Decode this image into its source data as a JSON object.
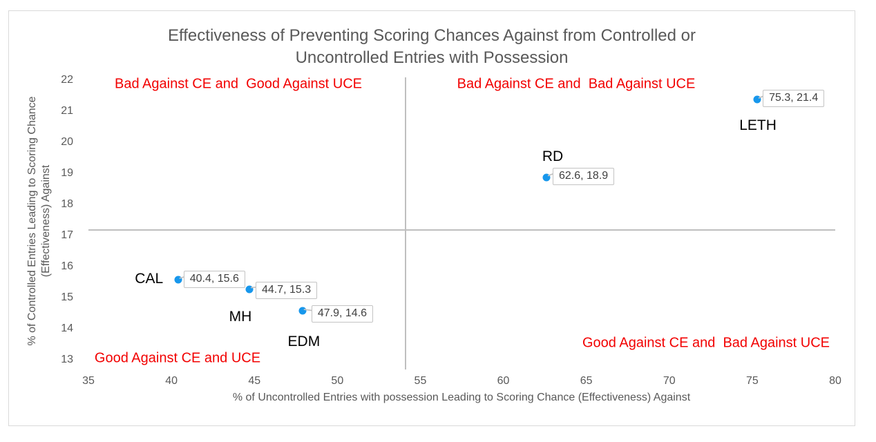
{
  "header": {
    "title_lines": [
      "Effectiveness of Preventing Scoring Chances Against from Controlled or",
      "Uncontrolled Entries with Possession"
    ]
  },
  "chart_data": {
    "type": "scatter",
    "title": "Effectiveness of Preventing Scoring Chances Against from Controlled or Uncontrolled Entries with Possession",
    "xlabel": "% of Uncontrolled Entries with possession Leading to Scoring Chance (Effectiveness) Against",
    "ylabel": "% of Controlled Entries Leading to Scoring Chance (Effectiveness) Against",
    "ylabel_lines": [
      "% of Controlled Entries Leading to Scoring Chance",
      "(Effectiveness) Against"
    ],
    "xlim": [
      35,
      80
    ],
    "ylim": [
      13,
      22
    ],
    "xticks": [
      35,
      40,
      45,
      50,
      55,
      60,
      65,
      70,
      75,
      80
    ],
    "yticks": [
      13,
      14,
      15,
      16,
      17,
      18,
      19,
      20,
      21,
      22
    ],
    "grid": false,
    "legend": "none",
    "reference_lines": {
      "vertical_x": 54.1,
      "horizontal_y": 17.2
    },
    "points": [
      {
        "team": "CAL",
        "x": 40.4,
        "y": 15.6,
        "value_label": "40.4, 15.6",
        "box_offset": [
          8,
          -13
        ],
        "team_offset": [
          -42,
          -1
        ]
      },
      {
        "team": "MH",
        "x": 44.7,
        "y": 15.3,
        "value_label": "44.7, 15.3",
        "box_offset": [
          9,
          -11
        ],
        "team_offset": [
          -13,
          40
        ]
      },
      {
        "team": "EDM",
        "x": 47.9,
        "y": 14.6,
        "value_label": "47.9, 14.6",
        "box_offset": [
          13,
          -8
        ],
        "team_offset": [
          2,
          45
        ]
      },
      {
        "team": "RD",
        "x": 62.6,
        "y": 18.9,
        "value_label": "62.6, 18.9",
        "box_offset": [
          9,
          -14
        ],
        "team_offset": [
          9,
          -30
        ]
      },
      {
        "team": "LETH",
        "x": 75.3,
        "y": 21.4,
        "value_label": "75.3, 21.4",
        "box_offset": [
          8,
          -14
        ],
        "team_offset": [
          1,
          38
        ]
      }
    ],
    "quadrant_labels": [
      {
        "position": "top-left",
        "text": "Bad Against CE and  Good Against UCE"
      },
      {
        "position": "top-right",
        "text": "Bad Against CE and  Bad Against UCE"
      },
      {
        "position": "bottom-left",
        "text": "Good Against CE and UCE"
      },
      {
        "position": "bottom-right",
        "text": "Good Against CE and  Bad Against UCE"
      }
    ],
    "colors": {
      "marker": "#1797ec",
      "quadrant_text": "#f20000",
      "axis_text": "#595959",
      "title_text": "#595959",
      "reference_line": "#bfbfbf",
      "callout_border": "#c3c3c3",
      "team_text": "#000000"
    }
  }
}
